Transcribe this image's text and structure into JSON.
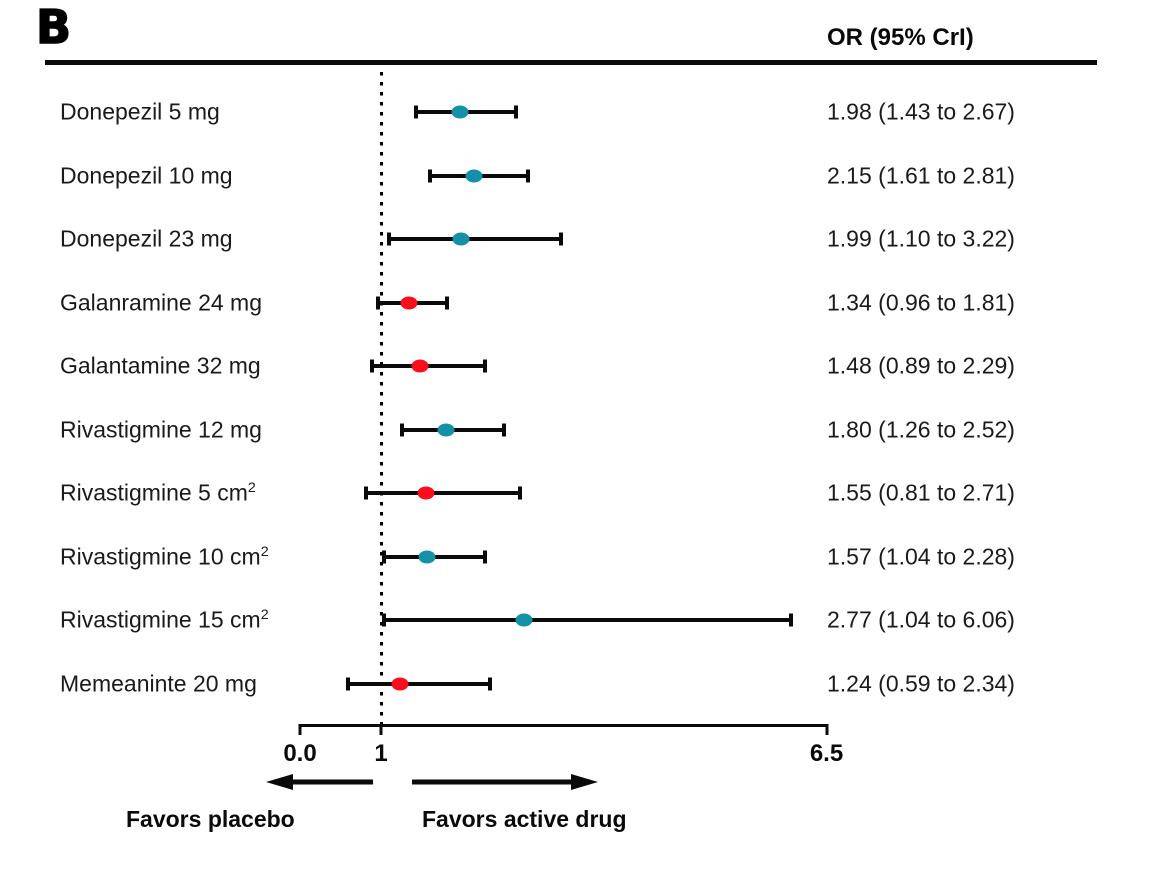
{
  "panel_label": "B",
  "header": {
    "or_column": "OR (95% CrI)"
  },
  "chart_data": {
    "type": "forest",
    "xlim": [
      0,
      6.5
    ],
    "x_reference_line": 1,
    "x_tick_values": [
      0,
      1,
      6.5
    ],
    "x_tick_labels": [
      "0.0",
      "1",
      "6.5"
    ],
    "grid": false,
    "direction_labels": {
      "left": "Favors placebo",
      "right": "Favors active drug"
    },
    "marker_colors": {
      "teal": "#1591a7",
      "red": "#fb0d1b"
    },
    "rows": [
      {
        "label": "Donepezil 5 mg",
        "label_sup": "",
        "or": 1.98,
        "ci_low": 1.43,
        "ci_high": 2.67,
        "or_text": "1.98 (1.43 to 2.67)",
        "color": "teal"
      },
      {
        "label": "Donepezil 10 mg",
        "label_sup": "",
        "or": 2.15,
        "ci_low": 1.61,
        "ci_high": 2.81,
        "or_text": "2.15 (1.61 to 2.81)",
        "color": "teal"
      },
      {
        "label": "Donepezil 23 mg",
        "label_sup": "",
        "or": 1.99,
        "ci_low": 1.1,
        "ci_high": 3.22,
        "or_text": "1.99 (1.10 to 3.22)",
        "color": "teal"
      },
      {
        "label": "Galanramine 24 mg",
        "label_sup": "",
        "or": 1.34,
        "ci_low": 0.96,
        "ci_high": 1.81,
        "or_text": "1.34 (0.96 to 1.81)",
        "color": "red"
      },
      {
        "label": "Galantamine 32 mg",
        "label_sup": "",
        "or": 1.48,
        "ci_low": 0.89,
        "ci_high": 2.29,
        "or_text": "1.48 (0.89 to 2.29)",
        "color": "red"
      },
      {
        "label": "Rivastigmine 12 mg",
        "label_sup": "",
        "or": 1.8,
        "ci_low": 1.26,
        "ci_high": 2.52,
        "or_text": "1.80 (1.26 to 2.52)",
        "color": "teal"
      },
      {
        "label": "Rivastigmine 5 cm",
        "label_sup": "2",
        "or": 1.55,
        "ci_low": 0.81,
        "ci_high": 2.71,
        "or_text": "1.55 (0.81 to 2.71)",
        "color": "red"
      },
      {
        "label": "Rivastigmine 10 cm",
        "label_sup": "2",
        "or": 1.57,
        "ci_low": 1.04,
        "ci_high": 2.28,
        "or_text": "1.57 (1.04 to 2.28)",
        "color": "teal"
      },
      {
        "label": "Rivastigmine 15 cm",
        "label_sup": "2",
        "or": 2.77,
        "ci_low": 1.04,
        "ci_high": 6.06,
        "or_text": "2.77 (1.04 to 6.06)",
        "color": "teal"
      },
      {
        "label": "Memeaninte 20 mg",
        "label_sup": "",
        "or": 1.24,
        "ci_low": 0.59,
        "ci_high": 2.34,
        "or_text": "1.24 (0.59 to 2.34)",
        "color": "red"
      }
    ]
  }
}
